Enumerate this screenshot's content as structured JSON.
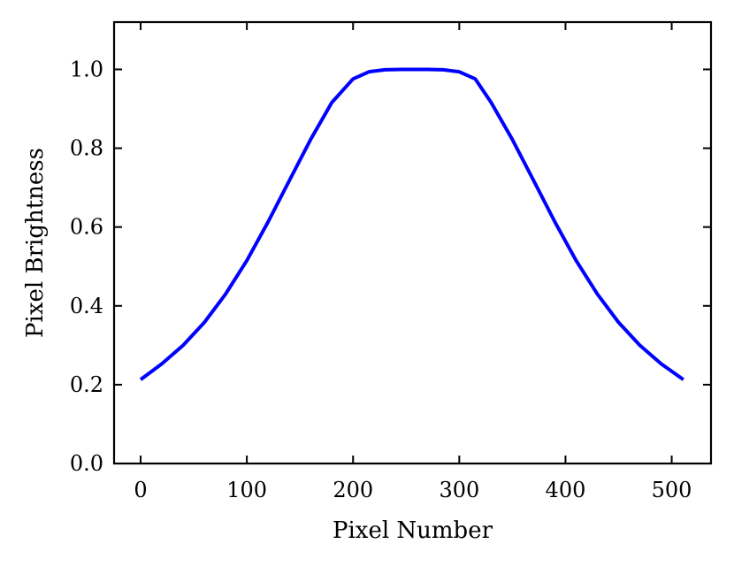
{
  "chart_data": {
    "type": "line",
    "title": "",
    "xlabel": "Pixel Number",
    "ylabel": "Pixel Brightness",
    "xlim": [
      -25,
      537
    ],
    "ylim": [
      0.0,
      1.12
    ],
    "xticks": [
      0,
      100,
      200,
      300,
      400,
      500
    ],
    "xtick_labels": [
      "0",
      "100",
      "200",
      "300",
      "400",
      "500"
    ],
    "yticks": [
      0.0,
      0.2,
      0.4,
      0.6,
      0.8,
      1.0
    ],
    "ytick_labels": [
      "0.0",
      "0.2",
      "0.4",
      "0.6",
      "0.8",
      "1.0"
    ],
    "grid": false,
    "series": [
      {
        "color": "#0000ff",
        "x": [
          0,
          20,
          40,
          60,
          80,
          100,
          120,
          140,
          160,
          180,
          200,
          215,
          230,
          245,
          256,
          270,
          285,
          300,
          315,
          330,
          350,
          370,
          390,
          410,
          430,
          450,
          470,
          490,
          511
        ],
        "y": [
          0.213,
          0.253,
          0.3,
          0.358,
          0.43,
          0.515,
          0.613,
          0.718,
          0.822,
          0.916,
          0.976,
          0.994,
          0.999,
          1.0,
          1.0,
          1.0,
          0.999,
          0.994,
          0.976,
          0.916,
          0.822,
          0.718,
          0.613,
          0.515,
          0.43,
          0.358,
          0.3,
          0.253,
          0.213
        ]
      }
    ]
  }
}
